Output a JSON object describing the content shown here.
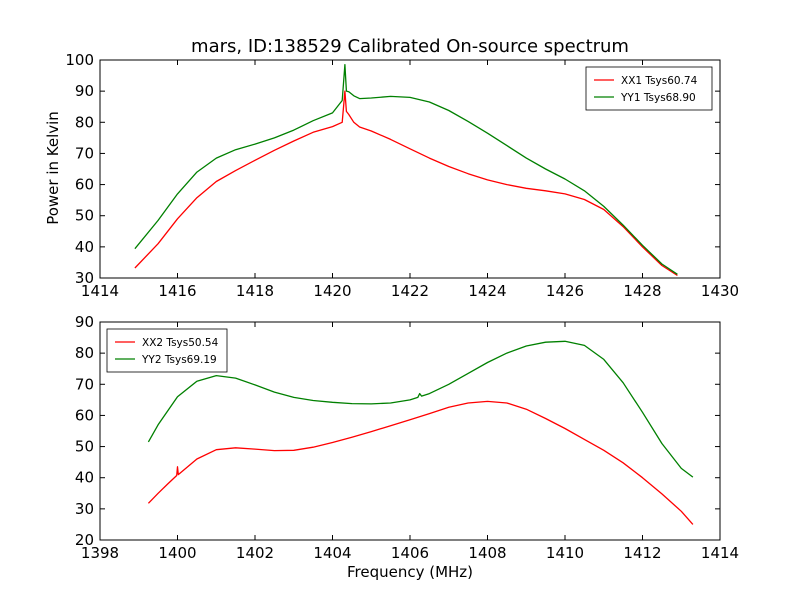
{
  "figure": {
    "title": "mars, ID:138529 Calibrated On-source spectrum",
    "xlabel": "Frequency (MHz)",
    "ylabel": "Power in Kelvin"
  },
  "colors": {
    "red": "#ff0000",
    "green": "#008000"
  },
  "chart_data": [
    {
      "type": "line",
      "title": "mars, ID:138529 Calibrated On-source spectrum",
      "xlabel": "",
      "ylabel": "Power in Kelvin",
      "xlim": [
        1414,
        1430
      ],
      "ylim": [
        30,
        100
      ],
      "xticks": [
        1414,
        1416,
        1418,
        1420,
        1422,
        1424,
        1426,
        1428,
        1430
      ],
      "yticks": [
        30,
        40,
        50,
        60,
        70,
        80,
        90,
        100
      ],
      "grid": false,
      "legend": "top-right",
      "series": [
        {
          "name": "XX1 Tsys60.74",
          "color": "#ff0000",
          "x": [
            1414.9,
            1415.5,
            1416.0,
            1416.5,
            1417.0,
            1417.5,
            1418.0,
            1418.5,
            1419.0,
            1419.5,
            1420.0,
            1420.25,
            1420.32,
            1420.36,
            1420.42,
            1420.55,
            1420.7,
            1421.0,
            1421.5,
            1422.0,
            1422.5,
            1423.0,
            1423.5,
            1424.0,
            1424.5,
            1425.0,
            1425.5,
            1426.0,
            1426.5,
            1427.0,
            1427.5,
            1428.0,
            1428.5,
            1428.9
          ],
          "y": [
            33.2,
            41.0,
            49.0,
            55.8,
            61.0,
            64.5,
            67.8,
            71.0,
            74.0,
            76.8,
            78.6,
            80.0,
            90.0,
            83.5,
            82.5,
            80.0,
            78.5,
            77.2,
            74.5,
            71.5,
            68.5,
            65.8,
            63.5,
            61.5,
            60.0,
            58.8,
            58.0,
            57.0,
            55.2,
            52.0,
            46.5,
            40.0,
            34.0,
            30.8
          ]
        },
        {
          "name": "YY1 Tsys68.90",
          "color": "#008000",
          "x": [
            1414.9,
            1415.5,
            1416.0,
            1416.5,
            1417.0,
            1417.5,
            1418.0,
            1418.5,
            1419.0,
            1419.5,
            1420.0,
            1420.25,
            1420.32,
            1420.36,
            1420.42,
            1420.55,
            1420.7,
            1421.0,
            1421.5,
            1422.0,
            1422.5,
            1423.0,
            1423.5,
            1424.0,
            1424.5,
            1425.0,
            1425.5,
            1426.0,
            1426.5,
            1427.0,
            1427.5,
            1428.0,
            1428.5,
            1428.9
          ],
          "y": [
            39.4,
            48.5,
            57.0,
            64.0,
            68.5,
            71.2,
            73.0,
            75.0,
            77.5,
            80.5,
            83.0,
            87.0,
            98.5,
            90.0,
            89.8,
            88.5,
            87.6,
            87.8,
            88.3,
            88.0,
            86.5,
            83.8,
            80.3,
            76.5,
            72.5,
            68.5,
            65.0,
            61.8,
            58.0,
            53.0,
            47.0,
            40.5,
            34.5,
            31.2
          ]
        }
      ]
    },
    {
      "type": "line",
      "title": "",
      "xlabel": "Frequency (MHz)",
      "ylabel": "",
      "xlim": [
        1398,
        1414
      ],
      "ylim": [
        20,
        90
      ],
      "xticks": [
        1398,
        1400,
        1402,
        1404,
        1406,
        1408,
        1410,
        1412,
        1414
      ],
      "yticks": [
        20,
        30,
        40,
        50,
        60,
        70,
        80,
        90
      ],
      "grid": false,
      "legend": "top-left",
      "series": [
        {
          "name": "XX2 Tsys50.54",
          "color": "#ff0000",
          "x": [
            1399.25,
            1399.5,
            1399.75,
            1399.98,
            1400.0,
            1400.02,
            1400.5,
            1401.0,
            1401.5,
            1402.0,
            1402.5,
            1403.0,
            1403.5,
            1404.0,
            1404.5,
            1405.0,
            1405.5,
            1406.0,
            1406.5,
            1407.0,
            1407.5,
            1408.0,
            1408.5,
            1409.0,
            1409.5,
            1410.0,
            1410.5,
            1411.0,
            1411.5,
            1412.0,
            1412.5,
            1413.0,
            1413.3
          ],
          "y": [
            31.8,
            35.0,
            38.0,
            40.7,
            43.5,
            41.0,
            46.0,
            49.0,
            49.6,
            49.2,
            48.7,
            48.8,
            49.8,
            51.3,
            53.0,
            54.8,
            56.7,
            58.6,
            60.6,
            62.6,
            64.0,
            64.5,
            64.0,
            62.0,
            59.0,
            55.8,
            52.3,
            48.8,
            44.8,
            40.0,
            34.8,
            29.2,
            25.0
          ]
        },
        {
          "name": "YY2 Tsys69.19",
          "color": "#008000",
          "x": [
            1399.25,
            1399.5,
            1400.0,
            1400.5,
            1401.0,
            1401.5,
            1402.0,
            1402.5,
            1403.0,
            1403.5,
            1404.0,
            1404.5,
            1405.0,
            1405.5,
            1406.0,
            1406.2,
            1406.25,
            1406.3,
            1406.5,
            1407.0,
            1407.5,
            1408.0,
            1408.5,
            1409.0,
            1409.5,
            1410.0,
            1410.5,
            1411.0,
            1411.5,
            1412.0,
            1412.5,
            1413.0,
            1413.3
          ],
          "y": [
            51.5,
            57.0,
            66.0,
            71.0,
            72.8,
            72.0,
            69.8,
            67.5,
            65.8,
            64.8,
            64.2,
            63.8,
            63.7,
            64.0,
            65.0,
            65.8,
            67.0,
            66.2,
            67.0,
            70.0,
            73.5,
            77.0,
            80.0,
            82.3,
            83.5,
            83.8,
            82.5,
            78.0,
            70.5,
            61.0,
            51.0,
            43.0,
            40.2
          ]
        }
      ]
    }
  ]
}
